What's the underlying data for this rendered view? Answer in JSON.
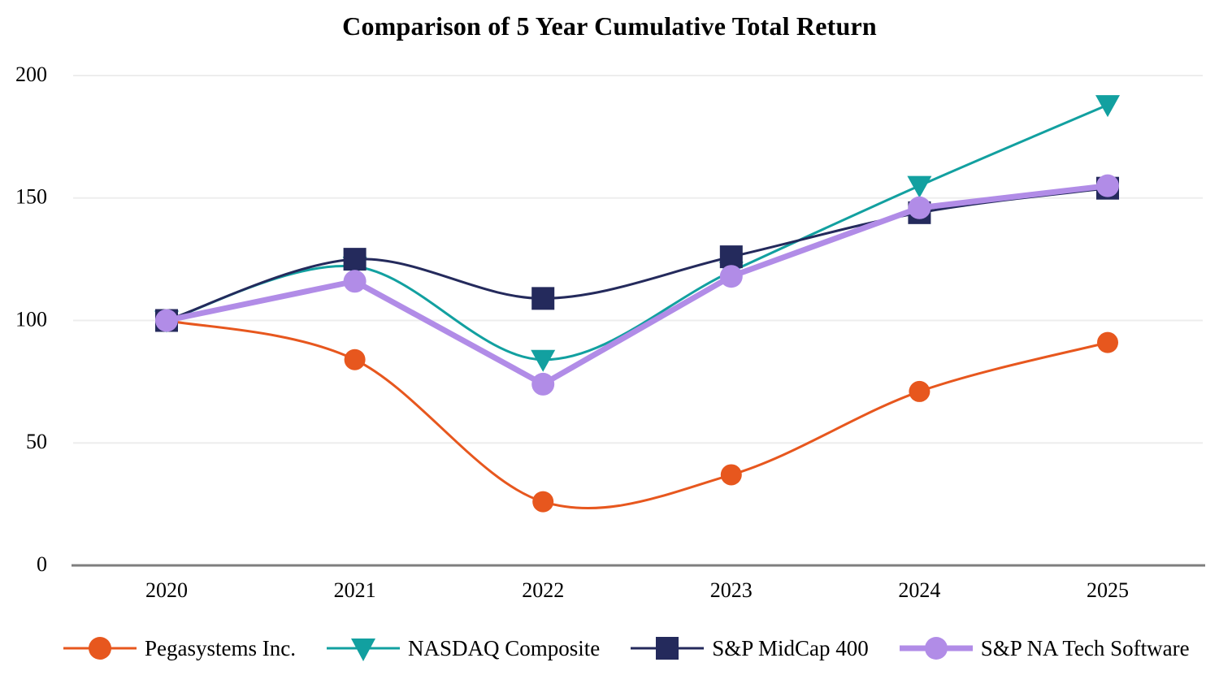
{
  "chart_data": {
    "type": "line",
    "title": "Comparison of 5 Year Cumulative Total Return",
    "categories": [
      "2020",
      "2021",
      "2022",
      "2023",
      "2024",
      "2025"
    ],
    "series": [
      {
        "name": "Pegasystems Inc.",
        "color": "#E7571E",
        "marker": "circle",
        "marker_size": 13,
        "line_width": 3,
        "smooth": true,
        "values": [
          100,
          84,
          26,
          37,
          71,
          91
        ]
      },
      {
        "name": "NASDAQ Composite",
        "color": "#12A0A0",
        "marker": "triangle-down",
        "marker_size": 15,
        "line_width": 3,
        "smooth": true,
        "values": [
          100,
          122,
          84,
          120,
          155,
          188
        ]
      },
      {
        "name": "S&P MidCap 400",
        "color": "#242A5C",
        "marker": "square",
        "marker_size": 14,
        "line_width": 3,
        "smooth": true,
        "values": [
          100,
          125,
          109,
          126,
          144,
          154
        ]
      },
      {
        "name": "S&P NA Tech Software",
        "color": "#B18CE7",
        "marker": "circle",
        "marker_size": 14,
        "line_width": 7,
        "smooth": false,
        "values": [
          100,
          116,
          74,
          118,
          146,
          155
        ]
      }
    ],
    "y_axis": {
      "ticks": [
        0,
        50,
        100,
        150,
        200
      ],
      "range": [
        0,
        200
      ]
    },
    "x_axis": {
      "labels": [
        "2020",
        "2021",
        "2022",
        "2023",
        "2024",
        "2025"
      ]
    },
    "style": {
      "gridline_color": "#EDEDED",
      "axis_color": "#7E7E7E",
      "text_color": "#000000",
      "background": "#FFFFFF"
    },
    "legend_position": "bottom"
  }
}
